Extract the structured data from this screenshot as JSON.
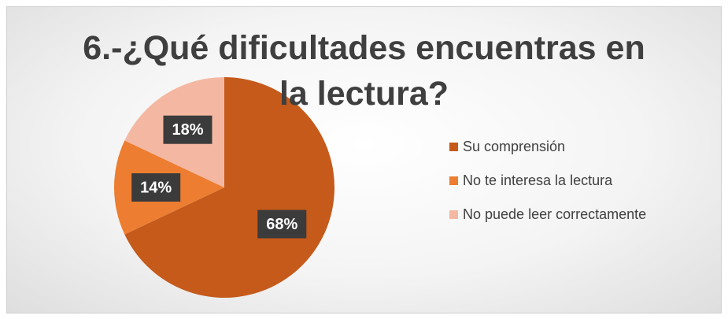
{
  "chart_data": {
    "type": "pie",
    "title": "6.-¿Qué dificultades encuentras en la lectura?",
    "categories": [
      "Su comprensión",
      "No te interesa la lectura",
      "No puede leer correctamente"
    ],
    "values": [
      68,
      14,
      18
    ],
    "value_labels": [
      "68%",
      "14%",
      "18%"
    ],
    "colors": [
      "#c55a1b",
      "#ed7d31",
      "#f4b8a2"
    ],
    "legend": "right"
  }
}
